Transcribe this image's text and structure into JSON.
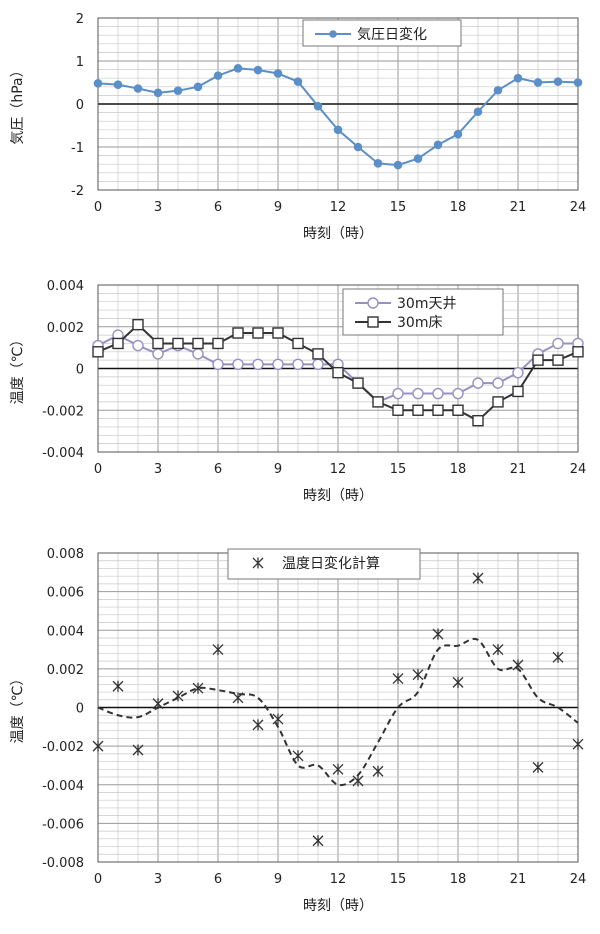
{
  "chart_data": [
    {
      "type": "line",
      "xlabel": "時刻（時）",
      "ylabel": "気圧（hPa）",
      "xlim": [
        0,
        24
      ],
      "ylim": [
        -2,
        2
      ],
      "xticks": [
        "0",
        "3",
        "6",
        "9",
        "12",
        "15",
        "18",
        "21",
        "24"
      ],
      "yticks": [
        "2",
        "1",
        "0",
        "-1",
        "-2"
      ],
      "legend_position": "top-right",
      "grid": true,
      "series": [
        {
          "name": "気圧日変化",
          "color": "#5b8fc7",
          "marker": "filled-circle",
          "x": [
            0,
            1,
            2,
            3,
            4,
            5,
            6,
            7,
            8,
            9,
            10,
            11,
            12,
            13,
            14,
            15,
            16,
            17,
            18,
            19,
            20,
            21,
            22,
            23,
            24
          ],
          "y": [
            0.48,
            0.45,
            0.36,
            0.26,
            0.31,
            0.4,
            0.66,
            0.83,
            0.79,
            0.71,
            0.52,
            -0.05,
            -0.6,
            -1.0,
            -1.38,
            -1.42,
            -1.27,
            -0.95,
            -0.7,
            -0.18,
            0.32,
            0.6,
            0.5,
            0.52,
            0.5
          ]
        }
      ]
    },
    {
      "type": "line",
      "xlabel": "時刻（時）",
      "ylabel": "温度（℃）",
      "xlim": [
        0,
        24
      ],
      "ylim": [
        -0.004,
        0.004
      ],
      "xticks": [
        "0",
        "3",
        "6",
        "9",
        "12",
        "15",
        "18",
        "21",
        "24"
      ],
      "yticks": [
        "0.004",
        "0.002",
        "0",
        "-0.002",
        "-0.004"
      ],
      "legend_position": "top-right",
      "grid": true,
      "series": [
        {
          "name": "30m天井",
          "color": "#9a8fc4",
          "marker": "open-circle",
          "x": [
            0,
            1,
            2,
            3,
            4,
            5,
            6,
            7,
            8,
            9,
            10,
            11,
            12,
            13,
            14,
            15,
            16,
            17,
            18,
            19,
            20,
            21,
            22,
            23,
            24
          ],
          "y": [
            0.0011,
            0.0016,
            0.0011,
            0.0007,
            0.0011,
            0.0007,
            0.0002,
            0.0002,
            0.0002,
            0.0002,
            0.0002,
            0.0002,
            0.0002,
            -0.0007,
            -0.0016,
            -0.0012,
            -0.0012,
            -0.0012,
            -0.0012,
            -0.0007,
            -0.0007,
            -0.0002,
            0.0007,
            0.0012,
            0.0012
          ]
        },
        {
          "name": "30m床",
          "color": "#333333",
          "marker": "open-square",
          "x": [
            0,
            1,
            2,
            3,
            4,
            5,
            6,
            7,
            8,
            9,
            10,
            11,
            12,
            13,
            14,
            15,
            16,
            17,
            18,
            19,
            20,
            21,
            22,
            23,
            24
          ],
          "y": [
            0.0008,
            0.0012,
            0.0021,
            0.0012,
            0.0012,
            0.0012,
            0.0012,
            0.0017,
            0.0017,
            0.0017,
            0.0012,
            0.0007,
            -0.0002,
            -0.0007,
            -0.0016,
            -0.002,
            -0.002,
            -0.002,
            -0.002,
            -0.0025,
            -0.0016,
            -0.0011,
            0.0004,
            0.0004,
            0.0008
          ]
        }
      ]
    },
    {
      "type": "scatter",
      "xlabel": "時刻（時）",
      "ylabel": "温度（℃）",
      "xlim": [
        0,
        24
      ],
      "ylim": [
        -0.008,
        0.008
      ],
      "xticks": [
        "0",
        "3",
        "6",
        "9",
        "12",
        "15",
        "18",
        "21",
        "24"
      ],
      "yticks": [
        "0.008",
        "0.006",
        "0.004",
        "0.002",
        "0",
        "-0.002",
        "-0.004",
        "-0.006",
        "-0.008"
      ],
      "legend_position": "top-right",
      "grid": true,
      "series": [
        {
          "name": "温度日変化計算",
          "color": "#333333",
          "marker": "star",
          "x": [
            0,
            1,
            2,
            3,
            4,
            5,
            6,
            7,
            8,
            9,
            10,
            11,
            12,
            13,
            14,
            15,
            16,
            17,
            18,
            19,
            20,
            21,
            22,
            23,
            24
          ],
          "y": [
            -0.002,
            0.0011,
            -0.0022,
            0.0002,
            0.0006,
            0.001,
            0.003,
            0.0005,
            -0.0009,
            -0.0006,
            -0.0025,
            -0.0069,
            -0.0032,
            -0.0038,
            -0.0033,
            0.0015,
            0.0017,
            0.0038,
            0.0013,
            0.0067,
            0.003,
            0.0022,
            -0.0031,
            0.0026,
            -0.0019
          ]
        },
        {
          "name": "",
          "color": "#333333",
          "marker": "none",
          "line": "dashed-trend",
          "x": [
            0,
            1,
            2,
            3,
            4,
            5,
            6,
            7,
            8,
            9,
            10,
            11,
            12,
            13,
            14,
            15,
            16,
            17,
            18,
            19,
            20,
            21,
            22,
            23,
            24
          ],
          "y": [
            0.0,
            -0.0004,
            -0.0005,
            0.0,
            0.0005,
            0.001,
            0.0009,
            0.0007,
            0.0005,
            -0.001,
            -0.003,
            -0.003,
            -0.004,
            -0.0035,
            -0.0018,
            0.0,
            0.0008,
            0.003,
            0.0032,
            0.0035,
            0.002,
            0.002,
            0.0005,
            0.0,
            -0.0008
          ]
        }
      ]
    }
  ]
}
